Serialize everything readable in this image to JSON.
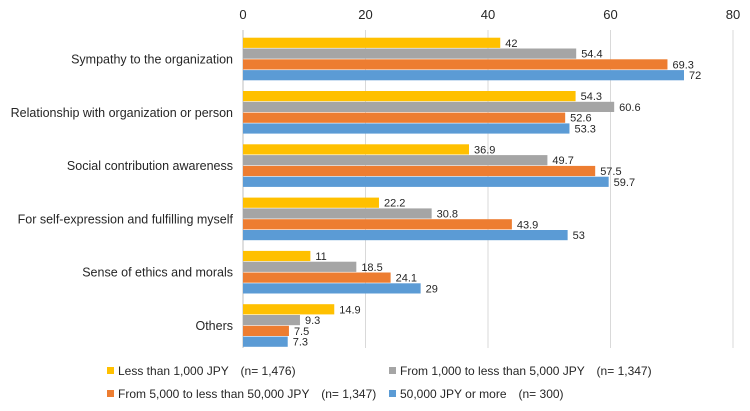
{
  "chart_data": {
    "type": "bar",
    "orientation": "horizontal",
    "title": "",
    "xlabel": "",
    "ylabel": "",
    "xlim": [
      0,
      80
    ],
    "ticks": [
      "0",
      "20",
      "40",
      "60",
      "80"
    ],
    "tick_values": [
      0,
      20,
      40,
      60,
      80
    ],
    "grid": true,
    "legend_position": "bottom",
    "categories": [
      "Sympathy to the organization",
      "Relationship with organization or person",
      "Social contribution awareness",
      "For self-expression and fulfilling myself",
      "Sense of ethics and morals",
      "Others"
    ],
    "series": [
      {
        "name": "Less than 1,000 JPY　(n= 1,476)",
        "color": "#FFC000",
        "values": [
          42,
          54.3,
          36.9,
          22.2,
          11,
          14.9
        ]
      },
      {
        "name": "From 1,000 to less than 5,000 JPY　(n= 1,347)",
        "color": "#A5A5A5",
        "values": [
          54.4,
          60.6,
          49.7,
          30.8,
          18.5,
          9.3
        ]
      },
      {
        "name": "From 5,000 to less than 50,000 JPY　(n= 1,347)",
        "color": "#ED7D31",
        "values": [
          69.3,
          52.6,
          57.5,
          43.9,
          24.1,
          7.5
        ]
      },
      {
        "name": "50,000 JPY or more　(n= 300)",
        "color": "#5B9BD5",
        "values": [
          72,
          53.3,
          59.7,
          53,
          29,
          7.3
        ]
      }
    ]
  }
}
